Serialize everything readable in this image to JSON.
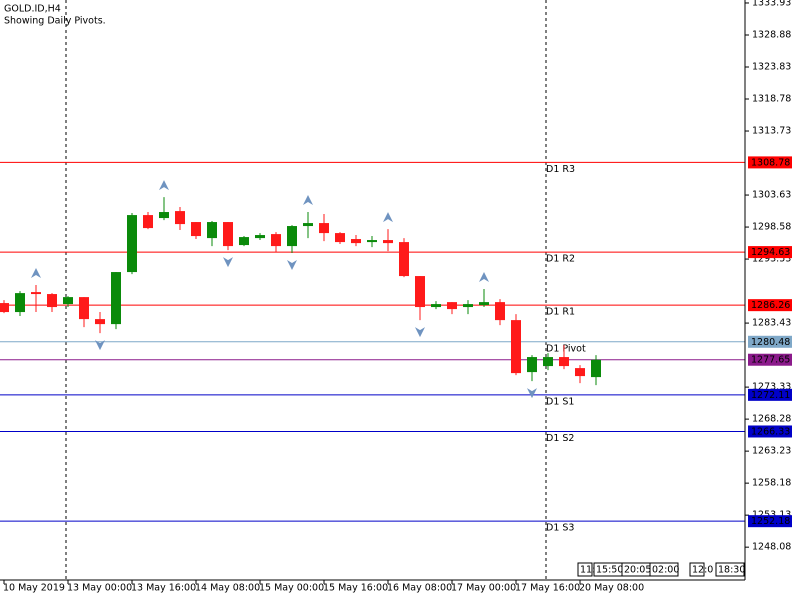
{
  "chart_data": {
    "type": "candlestick",
    "title": "GOLD.ID,H4",
    "subtitle": "Showing Daily Pivots.",
    "categories": [
      "10 May 2019",
      null,
      null,
      null,
      "13 May 00:00",
      null,
      null,
      null,
      "13 May 16:00",
      null,
      null,
      null,
      "14 May 08:00",
      null,
      null,
      null,
      "15 May 00:00",
      null,
      null,
      null,
      "15 May 16:00",
      null,
      null,
      null,
      "16 May 08:00",
      null,
      null,
      null,
      "17 May 00:00",
      null,
      null,
      null,
      "17 May 16:00",
      null,
      null,
      null,
      "20 May 08:00",
      null
    ],
    "open": [
      1286.59,
      1285.17,
      1288.32,
      1288.01,
      1286.43,
      1287.53,
      1284.06,
      1283.27,
      1291.48,
      1300.47,
      1300.0,
      1301.1,
      1299.37,
      1296.84,
      1299.37,
      1295.74,
      1296.84,
      1297.47,
      1295.58,
      1298.74,
      1299.21,
      1297.63,
      1296.69,
      1296.21,
      1296.53,
      1296.21,
      1290.85,
      1285.96,
      1286.74,
      1285.96,
      1286.27,
      1286.74,
      1283.9,
      1275.7,
      1276.65,
      1278.07,
      1276.33,
      1274.91
    ],
    "high": [
      1287.06,
      1288.48,
      1289.43,
      1288.16,
      1287.69,
      1287.53,
      1285.17,
      1291.48,
      1300.79,
      1300.95,
      1303.31,
      1301.74,
      1299.37,
      1299.53,
      1299.37,
      1297.16,
      1297.63,
      1297.79,
      1298.89,
      1300.95,
      1300.63,
      1297.79,
      1297.32,
      1297.16,
      1298.26,
      1296.84,
      1290.85,
      1286.9,
      1286.74,
      1287.06,
      1288.8,
      1287.22,
      1284.85,
      1278.38,
      1278.7,
      1279.96,
      1276.8,
      1278.38
    ],
    "low": [
      1285.01,
      1284.54,
      1285.17,
      1285.17,
      1285.96,
      1282.8,
      1281.85,
      1282.48,
      1291.16,
      1298.26,
      1299.68,
      1298.11,
      1296.69,
      1295.58,
      1294.95,
      1295.58,
      1296.53,
      1294.63,
      1294.48,
      1296.84,
      1296.37,
      1295.9,
      1295.58,
      1295.42,
      1294.79,
      1290.69,
      1283.9,
      1285.64,
      1284.85,
      1284.85,
      1285.96,
      1283.11,
      1275.22,
      1274.28,
      1276.01,
      1276.17,
      1273.96,
      1273.65
    ],
    "close": [
      1285.17,
      1288.16,
      1288.01,
      1285.96,
      1287.53,
      1284.06,
      1283.27,
      1291.48,
      1300.47,
      1298.42,
      1300.95,
      1299.05,
      1297.16,
      1299.37,
      1295.58,
      1297.0,
      1297.32,
      1295.58,
      1298.74,
      1299.21,
      1297.63,
      1296.21,
      1296.05,
      1296.53,
      1296.05,
      1290.85,
      1285.96,
      1286.43,
      1285.64,
      1286.43,
      1286.74,
      1283.9,
      1275.54,
      1278.07,
      1278.07,
      1276.65,
      1275.07,
      1277.65
    ],
    "up_color": "#0a8a0a",
    "down_color": "#ff1a1a",
    "fractals": {
      "up": [
        2,
        10,
        19,
        24,
        30
      ],
      "down": [
        6,
        14,
        18,
        26,
        33
      ],
      "color": "#6f93c0"
    },
    "levels": [
      {
        "name": "D1 R3",
        "value": 1308.78,
        "color": "#ff0000",
        "label_color": "#000000"
      },
      {
        "name": "D1 R2",
        "value": 1294.63,
        "color": "#ff0000",
        "label_color": "#000000"
      },
      {
        "name": "D1 R1",
        "value": 1286.26,
        "color": "#ff0000",
        "label_color": "#000000"
      },
      {
        "name": "D1 Pivot",
        "value": 1280.48,
        "color": "#7fa8c8",
        "label_color": "#ffffff"
      },
      {
        "name": "D1 S1",
        "value": 1272.11,
        "color": "#0000c8",
        "label_color": "#ffffff"
      },
      {
        "name": "D1 S2",
        "value": 1266.33,
        "color": "#0000c8",
        "label_color": "#ffffff"
      },
      {
        "name": "D1 S3",
        "value": 1252.18,
        "color": "#0000c8",
        "label_color": "#ffffff"
      }
    ],
    "current_price": 1277.65,
    "current_color": "#8b1a8b",
    "time_boxes": [
      "11:",
      "15:50",
      "20:05",
      "02:00",
      "12:0",
      "18:30"
    ],
    "ylim": [
      1242.9,
      1334.4
    ],
    "yticks": [
      1333.93,
      1328.88,
      1323.83,
      1318.78,
      1313.73,
      1303.63,
      1298.58,
      1293.53,
      1283.43,
      1273.33,
      1268.28,
      1263.23,
      1258.18,
      1253.13,
      1248.08
    ]
  }
}
